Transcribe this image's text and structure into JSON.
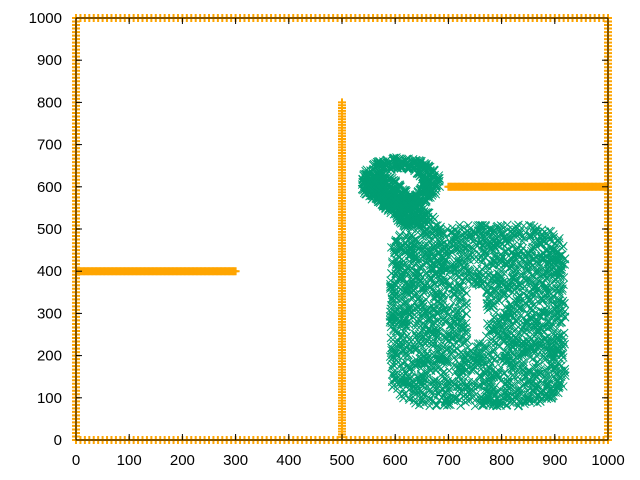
{
  "chart_data": {
    "type": "scatter",
    "title": "",
    "xlabel": "",
    "ylabel": "",
    "xlim": [
      0,
      1000
    ],
    "ylim": [
      0,
      1000
    ],
    "x_ticks": [
      0,
      100,
      200,
      300,
      400,
      500,
      600,
      700,
      800,
      900,
      1000
    ],
    "y_ticks": [
      0,
      100,
      200,
      300,
      400,
      500,
      600,
      700,
      800,
      900,
      1000
    ],
    "x_tick_labels": [
      "0",
      "100",
      "200",
      "300",
      "400",
      "500",
      "600",
      "700",
      "800",
      "900",
      "1000"
    ],
    "y_tick_labels": [
      "0",
      "100",
      "200",
      "300",
      "400",
      "500",
      "600",
      "700",
      "800",
      "900",
      "1000"
    ],
    "grid": false,
    "legend": "none",
    "series": [
      {
        "marker": "plus",
        "color": "#ffa500",
        "segments": [
          [
            [
              0,
              0
            ],
            [
              1000,
              0
            ]
          ],
          [
            [
              0,
              1000
            ],
            [
              1000,
              1000
            ]
          ],
          [
            [
              0,
              0
            ],
            [
              0,
              1000
            ]
          ],
          [
            [
              1000,
              0
            ],
            [
              1000,
              1000
            ]
          ],
          [
            [
              0,
              400
            ],
            [
              300,
              400
            ]
          ],
          [
            [
              500,
              0
            ],
            [
              500,
              800
            ]
          ],
          [
            [
              700,
              600
            ],
            [
              1000,
              600
            ]
          ]
        ]
      },
      {
        "marker": "x",
        "color": "#009e73",
        "regions": [
          {
            "shape": "rounded-rect",
            "x": [
              590,
              920
            ],
            "y": [
              80,
              510
            ]
          },
          {
            "shape": "ring",
            "cx": 610,
            "cy": 610,
            "rx": 75,
            "ry": 60
          },
          {
            "shape": "band",
            "from": [
              560,
              620
            ],
            "to": [
              650,
              510
            ],
            "width": 60
          }
        ],
        "holes": [
          {
            "x": [
              735,
              770
            ],
            "y": [
              230,
              365
            ]
          }
        ]
      }
    ]
  }
}
